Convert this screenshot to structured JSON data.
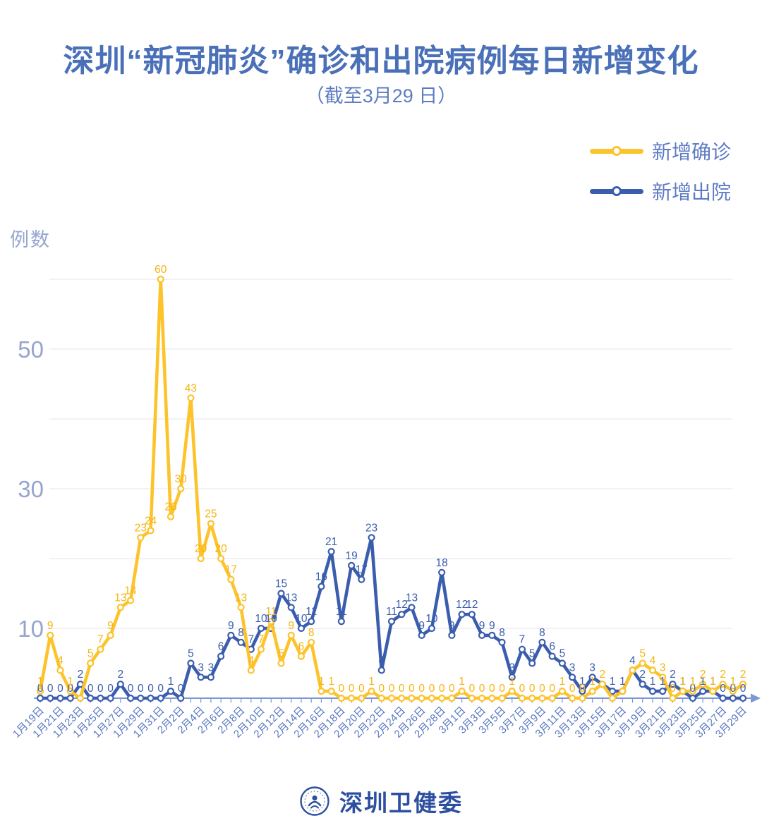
{
  "header": {
    "title": "深圳“新冠肺炎”确诊和出院病例每日新增变化",
    "subtitle": "（截至3月29 日）"
  },
  "legend": [
    {
      "label": "新增确诊",
      "color": "#fdc32b"
    },
    {
      "label": "新增出院",
      "color": "#3a5dae"
    }
  ],
  "footer": {
    "brand": "深圳卫健委"
  },
  "colors": {
    "title": "#4a70b8",
    "axis": "#7c97d3",
    "grid": "#ebebee",
    "y_tick_text": "#96a5ce",
    "x_tick_text": "#5878c2",
    "confirmed": "#fdc32b",
    "confirmed_label": "#f6b411",
    "discharged": "#3a5dae",
    "background": "#ffffff"
  },
  "chart_data": {
    "type": "line",
    "title": "深圳“新冠肺炎”确诊和出院病例每日新增变化（截至3月29日）",
    "ylabel": "例数",
    "xlabel": "",
    "ylim": [
      0,
      62
    ],
    "y_ticks": [
      10,
      30,
      50
    ],
    "grid_values": [
      10,
      20,
      30,
      40,
      50,
      60
    ],
    "x_tick_step": 2,
    "x_tick_labels": [
      "1月19日",
      "1月21日",
      "1月23日",
      "1月25日",
      "1月27日",
      "1月29日",
      "1月31日",
      "2月2日",
      "2月4日",
      "2月6日",
      "2月8日",
      "2月10日",
      "2月12日",
      "2月14日",
      "2月16日",
      "2月18日",
      "2月20日",
      "2月22日",
      "2月24日",
      "2月26日",
      "2月28日",
      "3月1日",
      "3月3日",
      "3月5日",
      "3月7日",
      "3月9日",
      "3月11日",
      "3月13日",
      "3月15日",
      "3月17日",
      "3月19日",
      "3月21日",
      "3月23日",
      "3月25日",
      "3月27日",
      "3月29日"
    ],
    "legend_position": "top-right",
    "series": [
      {
        "name": "新增出院",
        "color": "#3a5dae",
        "values": [
          0,
          0,
          0,
          0,
          2,
          0,
          0,
          0,
          2,
          0,
          0,
          0,
          0,
          1,
          0,
          5,
          3,
          3,
          6,
          9,
          8,
          7,
          10,
          10,
          15,
          13,
          10,
          11,
          16,
          21,
          11,
          19,
          17,
          23,
          4,
          11,
          12,
          13,
          9,
          10,
          18,
          9,
          12,
          12,
          9,
          9,
          8,
          3,
          7,
          5,
          8,
          6,
          5,
          3,
          1,
          3,
          2,
          1,
          1,
          4,
          2,
          1,
          1,
          2,
          1,
          0,
          1,
          1,
          0,
          0,
          0
        ],
        "hidden_labels": [
          56
        ]
      },
      {
        "name": "新增确诊",
        "color": "#fdc32b",
        "values": [
          1,
          9,
          4,
          1,
          0,
          5,
          7,
          9,
          13,
          14,
          23,
          24,
          60,
          26,
          30,
          43,
          20,
          25,
          20,
          17,
          13,
          4,
          7,
          11,
          5,
          9,
          6,
          8,
          1,
          1,
          0,
          0,
          0,
          1,
          0,
          0,
          0,
          0,
          0,
          0,
          0,
          0,
          1,
          0,
          0,
          0,
          0,
          1,
          0,
          0,
          0,
          0,
          1,
          0,
          0,
          1,
          2,
          0,
          1,
          4,
          5,
          4,
          3,
          0,
          1,
          1,
          2,
          1,
          2,
          1,
          2
        ],
        "hidden_labels": [
          4,
          57,
          58,
          59
        ]
      }
    ]
  }
}
